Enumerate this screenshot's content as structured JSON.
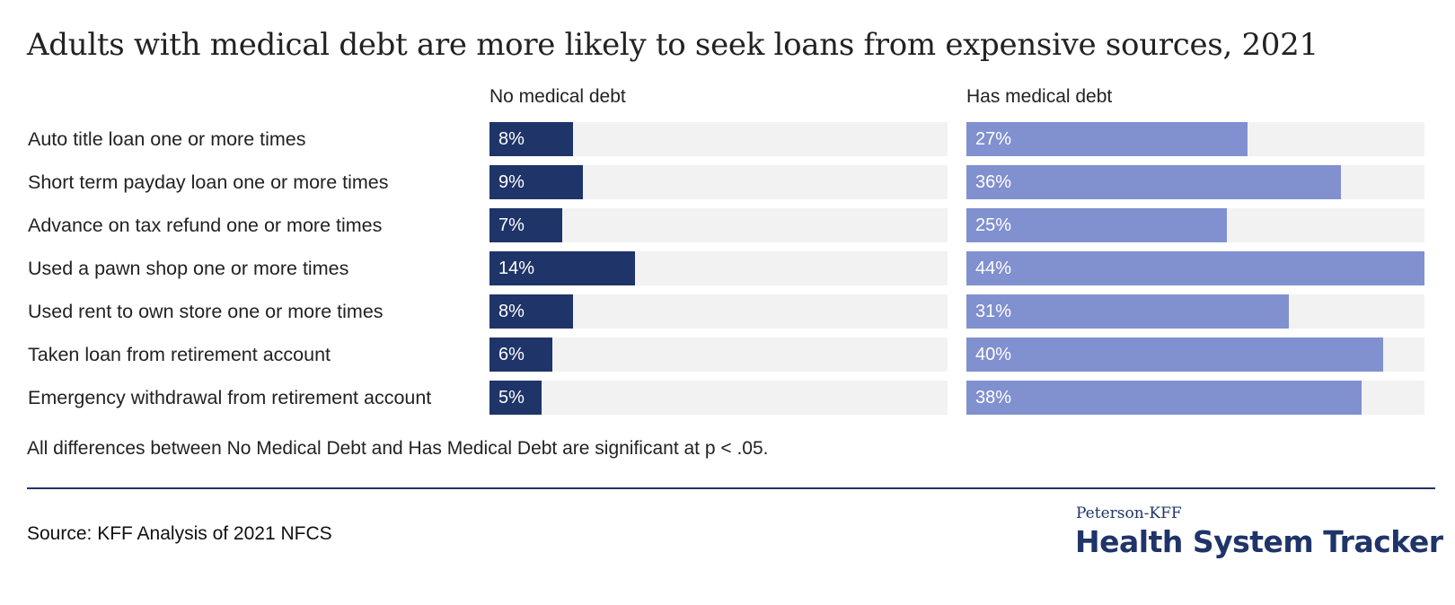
{
  "chart_data": {
    "type": "bar",
    "title": "Adults with medical debt are more likely to seek loans from expensive sources, 2021",
    "categories": [
      "Auto title loan one or more times",
      "Short term payday loan one or more times",
      "Advance on tax refund one or more times",
      "Used a pawn shop one or more times",
      "Used rent to own store one or more times",
      "Taken loan from retirement account",
      "Emergency withdrawal from retirement account"
    ],
    "series": [
      {
        "name": "No medical debt",
        "values": [
          8,
          9,
          7,
          14,
          8,
          6,
          5
        ],
        "labels": [
          "8%",
          "9%",
          "7%",
          "14%",
          "8%",
          "6%",
          "5%"
        ],
        "color": "#1f3468"
      },
      {
        "name": "Has medical debt",
        "values": [
          27,
          36,
          25,
          44,
          31,
          40,
          38
        ],
        "labels": [
          "27%",
          "36%",
          "25%",
          "44%",
          "31%",
          "40%",
          "38%"
        ],
        "color": "#8190cf"
      }
    ],
    "xlim": [
      0,
      44
    ],
    "track_color": "#f2f2f2",
    "legend": "panel headers"
  },
  "note": "All differences between No Medical Debt and Has Medical Debt are significant at p < .05.",
  "source": "Source: KFF Analysis of 2021 NFCS",
  "logo": {
    "top": "Peterson-KFF",
    "main": "Health System Tracker"
  }
}
